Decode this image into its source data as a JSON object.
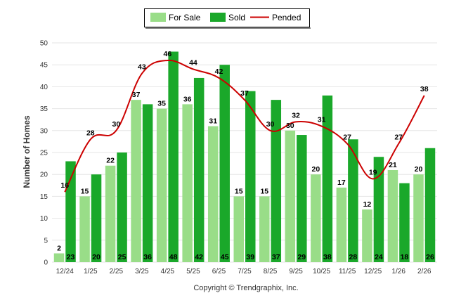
{
  "chart_data": {
    "type": "bar",
    "title": "",
    "xlabel": "",
    "ylabel": "Number of Homes",
    "ylim": [
      0,
      50
    ],
    "yticks": [
      0,
      5,
      10,
      15,
      20,
      25,
      30,
      35,
      40,
      45,
      50
    ],
    "grid": true,
    "legend_position": "top-center",
    "categories": [
      "12/24",
      "1/25",
      "2/25",
      "3/25",
      "4/25",
      "5/25",
      "6/25",
      "7/25",
      "8/25",
      "9/25",
      "10/25",
      "11/25",
      "12/25",
      "1/26",
      "2/26"
    ],
    "series": [
      {
        "name": "For Sale",
        "kind": "bar",
        "color": "#99dd88",
        "values": [
          2,
          15,
          22,
          37,
          35,
          36,
          31,
          15,
          15,
          30,
          20,
          17,
          12,
          21,
          20
        ]
      },
      {
        "name": "Sold",
        "kind": "bar",
        "color": "#1aa82a",
        "values": [
          23,
          20,
          25,
          36,
          48,
          42,
          45,
          39,
          37,
          29,
          38,
          28,
          24,
          18,
          26
        ]
      },
      {
        "name": "Pended",
        "kind": "line",
        "color": "#cc0000",
        "values": [
          16,
          28,
          30,
          43,
          46,
          44,
          42,
          37,
          30,
          32,
          31,
          27,
          19,
          27,
          38
        ]
      }
    ],
    "annotation": "Copyright © Trendgraphix, Inc."
  }
}
